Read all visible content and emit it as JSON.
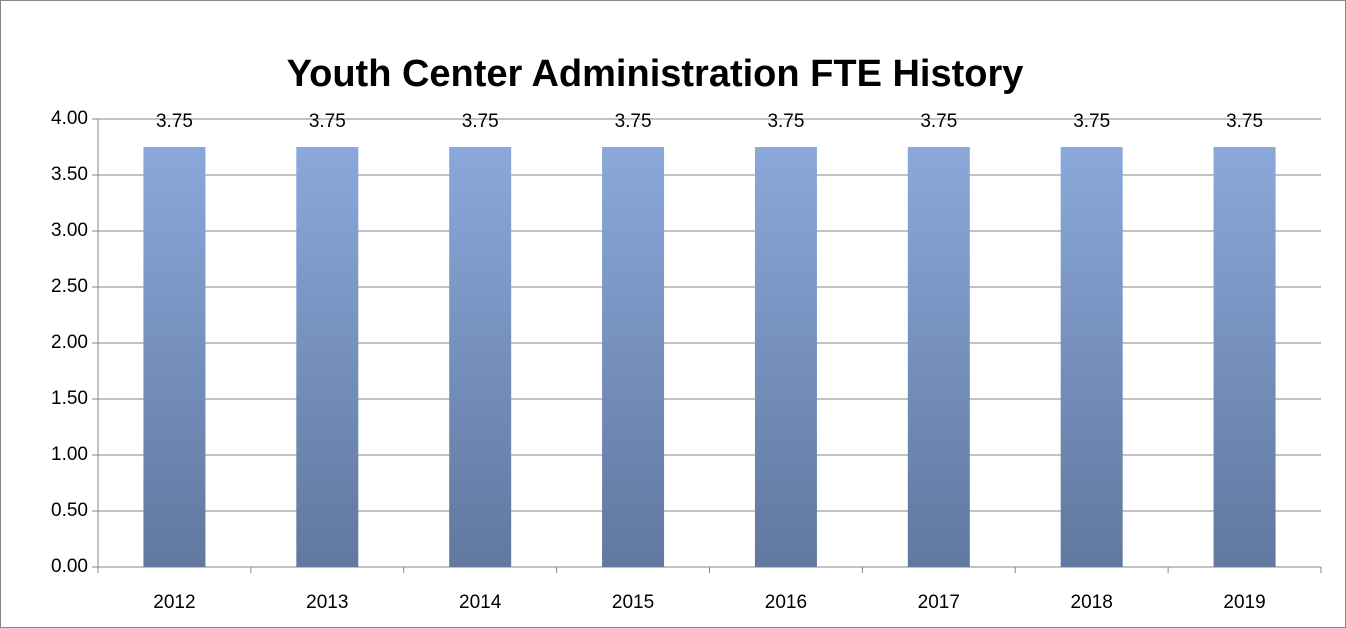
{
  "chart_data": {
    "type": "bar",
    "title": "Youth Center Administration FTE History",
    "categories": [
      "2012",
      "2013",
      "2014",
      "2015",
      "2016",
      "2017",
      "2018",
      "2019"
    ],
    "values": [
      3.75,
      3.75,
      3.75,
      3.75,
      3.75,
      3.75,
      3.75,
      3.75
    ],
    "color": "#7d98c8",
    "ylim": [
      0,
      4
    ],
    "yticks": [
      {
        "value": 0,
        "label": "0.00"
      },
      {
        "value": 0.5,
        "label": "0.50"
      },
      {
        "value": 1,
        "label": "1.00"
      },
      {
        "value": 1.5,
        "label": "1.50"
      },
      {
        "value": 2,
        "label": "2.00"
      },
      {
        "value": 2.5,
        "label": "2.50"
      },
      {
        "value": 3,
        "label": "3.00"
      },
      {
        "value": 3.5,
        "label": "3.50"
      },
      {
        "value": 4,
        "label": "4.00"
      }
    ],
    "grid": true
  }
}
